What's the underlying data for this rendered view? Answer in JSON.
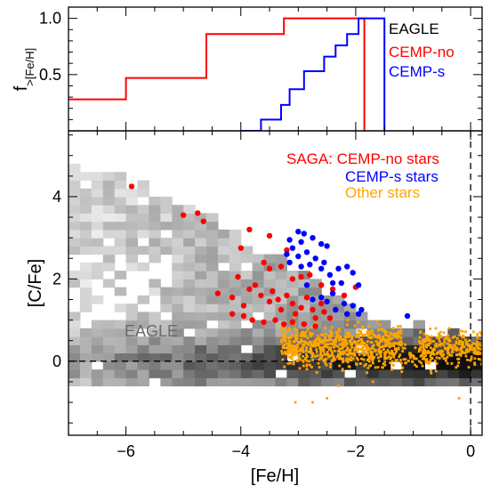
{
  "colors": {
    "eagle": "#000000",
    "cemp_no": "#ff0000",
    "cemp_s": "#0000ff",
    "other": "#ffa500"
  },
  "chart_data": [
    {
      "type": "line",
      "panel": "top",
      "ylabel": "f",
      "ylabel_sub": ">[Fe/H]",
      "xlim": [
        -7.0,
        0.2
      ],
      "ylim": [
        0.0,
        1.1
      ],
      "yticks": [
        0.5,
        1.0
      ],
      "ytick_labels": [
        "0.5",
        "1.0"
      ],
      "legend_entries": [
        "EAGLE",
        "CEMP-no",
        "CEMP-s"
      ],
      "legend_placement": "top-right",
      "series": [
        {
          "name": "CEMP-no",
          "color": "#ff0000",
          "step_x": [
            -7.0,
            -6.0,
            -6.0,
            -4.6,
            -4.6,
            -3.25,
            -3.25,
            -1.85,
            -1.85
          ],
          "step_y": [
            0.28,
            0.28,
            0.47,
            0.47,
            0.86,
            0.86,
            1.0,
            1.0,
            0.0
          ]
        },
        {
          "name": "CEMP-s",
          "color": "#0000ff",
          "step_x": [
            -4.0,
            -3.65,
            -3.65,
            -3.3,
            -3.3,
            -3.15,
            -3.15,
            -2.9,
            -2.9,
            -2.55,
            -2.55,
            -2.35,
            -2.35,
            -2.15,
            -2.15,
            -1.95,
            -1.95,
            -1.5,
            -1.5
          ],
          "step_y": [
            0.0,
            0.0,
            0.1,
            0.1,
            0.23,
            0.23,
            0.37,
            0.37,
            0.53,
            0.53,
            0.66,
            0.66,
            0.76,
            0.76,
            0.86,
            0.86,
            1.0,
            1.0,
            0.0
          ]
        }
      ]
    },
    {
      "type": "scatter",
      "panel": "bottom",
      "xlabel": "[Fe/H]",
      "ylabel": "[C/Fe]",
      "xlim": [
        -7.0,
        0.2
      ],
      "ylim": [
        -1.8,
        5.6
      ],
      "xticks": [
        -6,
        -4,
        -2,
        0
      ],
      "xtick_labels": [
        "−6",
        "−4",
        "−2",
        "0"
      ],
      "yticks": [
        0,
        2,
        4
      ],
      "ytick_labels": [
        "0",
        "2",
        "4"
      ],
      "annotation": "EAGLE",
      "legend_entries": [
        "SAGA: CEMP-no stars",
        "CEMP-s stars",
        "Other stars"
      ],
      "legend_placement": "top-right",
      "hline_y": 0,
      "vline_x": 0,
      "eagle_density_ridge": {
        "upper_edge": [
          [
            -6.8,
            4.7
          ],
          [
            -6.0,
            4.4
          ],
          [
            -5.0,
            3.8
          ],
          [
            -4.0,
            3.0
          ],
          [
            -3.0,
            2.3
          ],
          [
            -2.2,
            1.4
          ],
          [
            -1.5,
            1.0
          ],
          [
            -0.5,
            0.7
          ],
          [
            0.2,
            0.6
          ]
        ],
        "lower_edge": [
          [
            -6.8,
            -0.7
          ],
          [
            -5.0,
            -0.7
          ],
          [
            -3.0,
            -0.6
          ],
          [
            -1.5,
            -0.6
          ],
          [
            -0.5,
            -0.6
          ],
          [
            0.2,
            -0.6
          ]
        ],
        "peak": [
          [
            -3.0,
            0.0
          ],
          [
            -2.0,
            0.0
          ],
          [
            -1.0,
            0.1
          ],
          [
            -0.3,
            0.2
          ]
        ]
      },
      "series": [
        {
          "name": "CEMP-no stars",
          "color": "#ff0000",
          "points": [
            [
              -5.9,
              4.25
            ],
            [
              -5.0,
              3.55
            ],
            [
              -4.75,
              3.6
            ],
            [
              -4.65,
              3.4
            ],
            [
              -3.85,
              3.2
            ],
            [
              -3.5,
              3.05
            ],
            [
              -3.2,
              2.7
            ],
            [
              -4.0,
              2.75
            ],
            [
              -3.6,
              2.4
            ],
            [
              -3.5,
              2.25
            ],
            [
              -3.3,
              2.3
            ],
            [
              -3.1,
              2.0
            ],
            [
              -2.95,
              2.05
            ],
            [
              -2.8,
              2.1
            ],
            [
              -2.6,
              1.85
            ],
            [
              -2.4,
              1.75
            ],
            [
              -2.2,
              1.6
            ],
            [
              -2.0,
              1.8
            ],
            [
              -4.4,
              1.65
            ],
            [
              -4.15,
              1.55
            ],
            [
              -3.95,
              1.35
            ],
            [
              -3.75,
              1.85
            ],
            [
              -3.65,
              1.6
            ],
            [
              -3.5,
              1.45
            ],
            [
              -3.45,
              1.7
            ],
            [
              -3.35,
              1.5
            ],
            [
              -3.3,
              1.25
            ],
            [
              -3.2,
              1.6
            ],
            [
              -3.1,
              1.4
            ],
            [
              -3.05,
              1.15
            ],
            [
              -2.95,
              1.3
            ],
            [
              -2.85,
              1.55
            ],
            [
              -2.75,
              1.25
            ],
            [
              -2.7,
              1.05
            ],
            [
              -2.6,
              1.4
            ],
            [
              -2.55,
              1.2
            ],
            [
              -2.45,
              1.05
            ],
            [
              -4.15,
              1.15
            ],
            [
              -3.95,
              1.1
            ],
            [
              -3.8,
              1.0
            ],
            [
              -3.6,
              0.95
            ],
            [
              -3.4,
              1.0
            ],
            [
              -3.25,
              0.9
            ],
            [
              -3.1,
              0.95
            ],
            [
              -2.9,
              0.9
            ],
            [
              -2.7,
              0.85
            ],
            [
              -4.05,
              2.05
            ],
            [
              -3.85,
              1.75
            ]
          ]
        },
        {
          "name": "CEMP-s stars",
          "color": "#0000ff",
          "points": [
            [
              -3.0,
              3.15
            ],
            [
              -2.9,
              3.1
            ],
            [
              -3.15,
              2.95
            ],
            [
              -2.95,
              2.9
            ],
            [
              -2.75,
              3.0
            ],
            [
              -3.1,
              2.75
            ],
            [
              -2.85,
              2.65
            ],
            [
              -2.6,
              2.85
            ],
            [
              -2.5,
              2.8
            ],
            [
              -3.0,
              2.55
            ],
            [
              -2.7,
              2.5
            ],
            [
              -2.55,
              2.4
            ],
            [
              -3.2,
              2.6
            ],
            [
              -3.15,
              2.4
            ],
            [
              -2.95,
              2.3
            ],
            [
              -2.8,
              2.35
            ],
            [
              -2.6,
              2.25
            ],
            [
              -2.45,
              2.1
            ],
            [
              -2.3,
              2.25
            ],
            [
              -2.15,
              2.3
            ],
            [
              -2.05,
              2.15
            ],
            [
              -1.95,
              1.85
            ],
            [
              -2.25,
              1.9
            ],
            [
              -2.4,
              1.65
            ],
            [
              -2.6,
              1.55
            ],
            [
              -2.2,
              1.4
            ],
            [
              -2.05,
              1.35
            ],
            [
              -2.75,
              1.5
            ],
            [
              -2.35,
              1.25
            ],
            [
              -2.15,
              1.15
            ],
            [
              -1.95,
              1.15
            ],
            [
              -1.9,
              1.25
            ],
            [
              -2.5,
              1.45
            ],
            [
              -1.1,
              1.1
            ],
            [
              -2.85,
              1.85
            ],
            [
              -2.4,
              1.9
            ]
          ]
        },
        {
          "name": "Other stars",
          "color": "#ffa500",
          "note": "approximately 1000 small points spanning [Fe/H] from -3.3 to 0.2, [C/Fe] mostly -0.6 to 1.0, densest near [Fe/H] -2.7..-2.0 and [Fe/H] -0.8..0.2",
          "clusters": [
            {
              "x_range": [
                -3.3,
                -1.2
              ],
              "y_mean": 0.35,
              "y_spread": 0.45,
              "count": 700
            },
            {
              "x_range": [
                -1.2,
                -0.6
              ],
              "y_mean": 0.1,
              "y_spread": 0.35,
              "count": 60
            },
            {
              "x_range": [
                -0.9,
                0.2
              ],
              "y_mean": 0.35,
              "y_spread": 0.35,
              "count": 260
            }
          ],
          "outliers": [
            [
              -3.05,
              -1.0
            ],
            [
              -2.75,
              -1.0
            ],
            [
              -2.5,
              -0.9
            ],
            [
              -0.2,
              -0.9
            ],
            [
              -2.3,
              -0.6
            ],
            [
              -1.7,
              -0.5
            ],
            [
              -3.25,
              0.8
            ],
            [
              -1.5,
              0.75
            ]
          ]
        }
      ]
    }
  ]
}
